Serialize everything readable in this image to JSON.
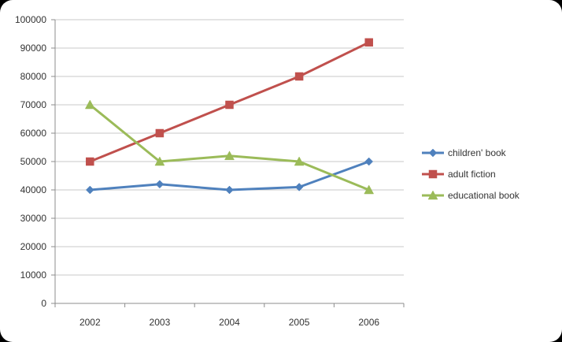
{
  "chart_data": {
    "type": "line",
    "title": "",
    "xlabel": "",
    "ylabel": "",
    "categories": [
      "2002",
      "2003",
      "2004",
      "2005",
      "2006"
    ],
    "ylim": [
      0,
      100000
    ],
    "yticks": [
      "0",
      "10000",
      "20000",
      "30000",
      "40000",
      "50000",
      "60000",
      "70000",
      "80000",
      "90000",
      "100000"
    ],
    "grid": "horizontal",
    "legend_position": "right",
    "series": [
      {
        "name": "children' book",
        "values": [
          40000,
          42000,
          40000,
          41000,
          50000
        ],
        "color": "#4f81bd",
        "marker": "diamond"
      },
      {
        "name": "adult fiction",
        "values": [
          50000,
          60000,
          70000,
          80000,
          92000
        ],
        "color": "#c0504d",
        "marker": "square"
      },
      {
        "name": "educational book",
        "values": [
          70000,
          50000,
          52000,
          50000,
          40000
        ],
        "color": "#9bbb59",
        "marker": "triangle"
      }
    ]
  }
}
